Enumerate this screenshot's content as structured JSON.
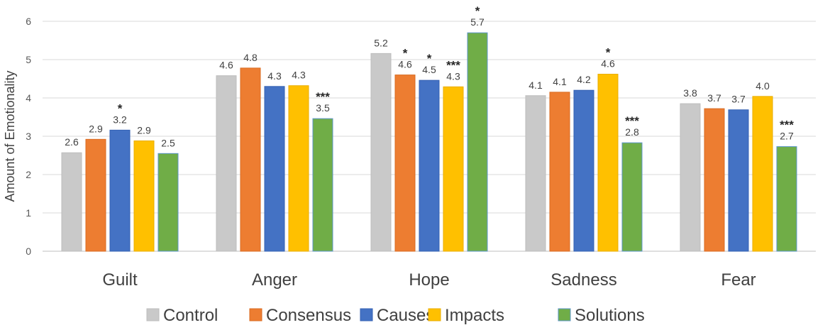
{
  "chart_data": {
    "type": "bar",
    "title": "",
    "xlabel": "",
    "ylabel": "Amount of Emotionality",
    "ylim": [
      0,
      6
    ],
    "yticks": [
      "0",
      "1",
      "2",
      "3",
      "4",
      "5",
      "6"
    ],
    "categories": [
      "Guilt",
      "Anger",
      "Hope",
      "Sadness",
      "Fear"
    ],
    "legend_position": "bottom",
    "series": [
      {
        "name": "Control",
        "color": "#c9c9c9",
        "edge": "#bdbdbd",
        "values": [
          2.57,
          4.58,
          5.16,
          4.06,
          3.85
        ],
        "labels": [
          "2.6",
          "4.6",
          "5.2",
          "4.1",
          "3.8"
        ],
        "sig": [
          "",
          "",
          "",
          "",
          ""
        ]
      },
      {
        "name": "Consensus",
        "color": "#ed7d31",
        "edge": "#d96b22",
        "values": [
          2.92,
          4.78,
          4.6,
          4.15,
          3.72
        ],
        "labels": [
          "2.9",
          "4.8",
          "4.6",
          "4.1",
          "3.7"
        ],
        "sig": [
          "",
          "",
          "*",
          "",
          ""
        ]
      },
      {
        "name": "Causes",
        "color": "#4472c4",
        "edge": "#3461b3",
        "values": [
          3.16,
          4.3,
          4.46,
          4.2,
          3.69
        ],
        "labels": [
          "3.2",
          "4.3",
          "4.5",
          "4.2",
          "3.7"
        ],
        "sig": [
          "*",
          "",
          "*",
          "",
          ""
        ]
      },
      {
        "name": "Impacts",
        "color": "#ffc000",
        "edge": "#eaae00",
        "values": [
          2.88,
          4.32,
          4.29,
          4.62,
          4.04
        ],
        "labels": [
          "2.9",
          "4.3",
          "4.3",
          "4.6",
          "4.0"
        ],
        "sig": [
          "",
          "",
          "***",
          "*",
          ""
        ]
      },
      {
        "name": "Solutions",
        "color": "#70ad47",
        "edge": "#5c95c9",
        "values": [
          2.55,
          3.46,
          5.7,
          2.83,
          2.73
        ],
        "labels": [
          "2.5",
          "3.5",
          "5.7",
          "2.8",
          "2.7"
        ],
        "sig": [
          "",
          "***",
          "*",
          "***",
          "***"
        ]
      }
    ]
  }
}
